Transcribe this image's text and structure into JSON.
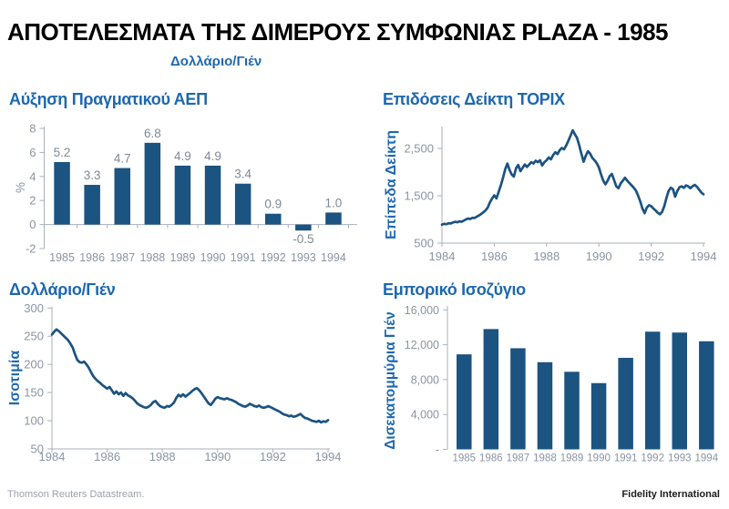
{
  "page": {
    "title": "ΑΠΟΤΕΛΕΣΜΑΤΑ ΤΗΣ ΔΙΜΕΡΟΥΣ ΣΥΜΦΩΝΙΑΣ PLAZA - 1985",
    "subtitle": "Δολλάριο/Γιέν",
    "footer_left": "Thomson Reuters Datastream.",
    "footer_right": "Fidelity International"
  },
  "colors": {
    "accent_blue": "#1E68AE",
    "series_navy": "#1B5381",
    "tick_gray": "#8A94A3",
    "axis_gray": "#A9B0BA",
    "value_label_gray": "#7E8995",
    "footer_gray": "#9CA3AB",
    "footer_dark": "#1C1C1C",
    "title_black": "#000000"
  },
  "chart_data": [
    {
      "id": "gdp",
      "type": "bar",
      "title": "Αύξηση Πραγματικού ΑΕΠ",
      "ylabel": "%",
      "categories": [
        "1985",
        "1986",
        "1987",
        "1988",
        "1989",
        "1990",
        "1991",
        "1992",
        "1993",
        "1994"
      ],
      "values": [
        5.2,
        3.3,
        4.7,
        6.8,
        4.9,
        4.9,
        3.4,
        0.9,
        -0.5,
        1.0
      ],
      "value_labels": [
        "5.2",
        "3.3",
        "4.7",
        "6.8",
        "4.9",
        "4.9",
        "3.4",
        "0.9",
        "-0.5",
        "1.0"
      ],
      "ylim": [
        -2,
        8
      ],
      "yticks": [
        {
          "v": 8,
          "label": "8"
        },
        {
          "v": 6,
          "label": "6"
        },
        {
          "v": 4,
          "label": "4"
        },
        {
          "v": 2,
          "label": "2"
        },
        {
          "v": 0,
          "label": "0"
        },
        {
          "v": -2,
          "label": "-2"
        }
      ],
      "grid": false
    },
    {
      "id": "topix",
      "type": "line",
      "title": "Επιδόσεις Δείκτη TOPIX",
      "ylabel": "Επίπεδα Δείκτη",
      "x_start": 1984,
      "x_end": 1994,
      "points_per_year": 12,
      "xticks": [
        "1984",
        "1986",
        "1988",
        "1990",
        "1992",
        "1994"
      ],
      "yticks": [
        {
          "v": 2500,
          "label": "2,500"
        },
        {
          "v": 1500,
          "label": "1,500"
        },
        {
          "v": 500,
          "label": "500"
        }
      ],
      "ylim": [
        500,
        2950
      ],
      "grid": false,
      "values": [
        890,
        905,
        900,
        920,
        915,
        935,
        950,
        940,
        960,
        950,
        975,
        1000,
        1020,
        1010,
        1035,
        1030,
        1060,
        1085,
        1115,
        1150,
        1190,
        1250,
        1360,
        1440,
        1510,
        1445,
        1580,
        1720,
        1880,
        2060,
        2180,
        2050,
        1950,
        1905,
        2080,
        2150,
        2020,
        2090,
        2160,
        2110,
        2160,
        2210,
        2180,
        2240,
        2210,
        2250,
        2140,
        2210,
        2250,
        2310,
        2270,
        2360,
        2420,
        2380,
        2460,
        2510,
        2480,
        2560,
        2660,
        2770,
        2880,
        2800,
        2720,
        2560,
        2380,
        2220,
        2350,
        2440,
        2390,
        2300,
        2250,
        2190,
        2100,
        1950,
        1820,
        1740,
        1820,
        1920,
        1960,
        1830,
        1700,
        1660,
        1760,
        1820,
        1880,
        1820,
        1770,
        1720,
        1670,
        1610,
        1500,
        1380,
        1230,
        1130,
        1250,
        1300,
        1280,
        1230,
        1190,
        1140,
        1110,
        1160,
        1280,
        1450,
        1600,
        1670,
        1640,
        1480,
        1600,
        1680,
        1700,
        1670,
        1720,
        1700,
        1660,
        1700,
        1730,
        1690,
        1630,
        1570,
        1530
      ]
    },
    {
      "id": "usdjpy",
      "type": "line",
      "title": "Δολλάριο/Γιέν",
      "ylabel": "Ισοτιμία",
      "x_start": 1984,
      "x_end": 1994,
      "points_per_year": 12,
      "xticks": [
        "1984",
        "1986",
        "1988",
        "1990",
        "1992",
        "1994"
      ],
      "yticks": [
        {
          "v": 300,
          "label": "300"
        },
        {
          "v": 250,
          "label": "250"
        },
        {
          "v": 200,
          "label": "200"
        },
        {
          "v": 150,
          "label": "150"
        },
        {
          "v": 100,
          "label": "100"
        },
        {
          "v": 50,
          "label": "50"
        }
      ],
      "ylim": [
        50,
        300
      ],
      "grid": false,
      "values": [
        253,
        258,
        262,
        259,
        255,
        251,
        247,
        243,
        237,
        230,
        218,
        208,
        204,
        203,
        205,
        200,
        194,
        186,
        179,
        174,
        170,
        167,
        163,
        160,
        157,
        160,
        154,
        148,
        152,
        147,
        150,
        144,
        149,
        145,
        143,
        140,
        136,
        131,
        128,
        126,
        124,
        123,
        125,
        128,
        133,
        135,
        130,
        126,
        124,
        123,
        126,
        125,
        128,
        132,
        140,
        146,
        143,
        147,
        143,
        146,
        149,
        153,
        156,
        158,
        154,
        149,
        143,
        137,
        131,
        128,
        133,
        139,
        142,
        140,
        139,
        138,
        140,
        138,
        137,
        135,
        133,
        130,
        128,
        126,
        125,
        127,
        130,
        128,
        126,
        125,
        127,
        124,
        123,
        124,
        126,
        124,
        122,
        120,
        118,
        116,
        113,
        111,
        110,
        108,
        109,
        107,
        108,
        110,
        112,
        108,
        105,
        104,
        102,
        100,
        99,
        98,
        100,
        97,
        99,
        98,
        101
      ]
    },
    {
      "id": "trade",
      "type": "bar",
      "title": "Εμπορικό Ισοζύγιο",
      "ylabel": "Δισεκατομμύρια Γιέν",
      "categories": [
        "1985",
        "1986",
        "1987",
        "1988",
        "1989",
        "1990",
        "1991",
        "1992",
        "1993",
        "1994"
      ],
      "values": [
        10900,
        13800,
        11600,
        10000,
        8900,
        7600,
        10500,
        13500,
        13400,
        12400
      ],
      "ylim": [
        0,
        16000
      ],
      "yticks": [
        {
          "v": 16000,
          "label": "16,000"
        },
        {
          "v": 12000,
          "label": "12,000"
        },
        {
          "v": 8000,
          "label": "8,000"
        },
        {
          "v": 4000,
          "label": "4,000"
        },
        {
          "v": 0,
          "label": "-"
        }
      ],
      "grid": false
    }
  ]
}
